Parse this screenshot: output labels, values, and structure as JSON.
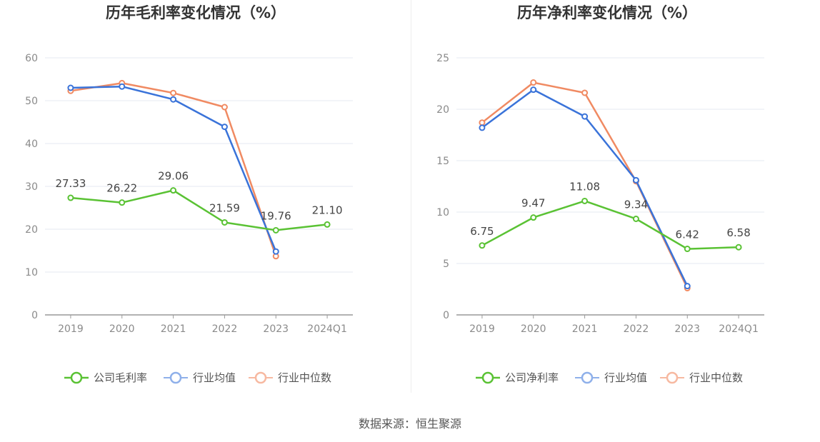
{
  "chart_data": [
    {
      "type": "line",
      "title": "历年毛利率变化情况（%）",
      "categories": [
        "2019",
        "2020",
        "2021",
        "2022",
        "2023",
        "2024Q1"
      ],
      "ylim": [
        0,
        60
      ],
      "yticks": [
        0,
        10,
        20,
        30,
        40,
        50,
        60
      ],
      "series": [
        {
          "name": "公司毛利率",
          "color": "#5ac234",
          "values": [
            27.33,
            26.22,
            29.06,
            21.59,
            19.76,
            21.1
          ],
          "labels": [
            "27.33",
            "26.22",
            "29.06",
            "21.59",
            "19.76",
            "21.10"
          ]
        },
        {
          "name": "行业均值",
          "color": "#3a73d9",
          "values": [
            53.0,
            53.3,
            50.3,
            43.9,
            14.8,
            null
          ]
        },
        {
          "name": "行业中位数",
          "color": "#f08a62",
          "values": [
            52.3,
            54.1,
            51.8,
            48.5,
            13.7,
            null
          ]
        }
      ]
    },
    {
      "type": "line",
      "title": "历年净利率变化情况（%）",
      "categories": [
        "2019",
        "2020",
        "2021",
        "2022",
        "2023",
        "2024Q1"
      ],
      "ylim": [
        0,
        25
      ],
      "yticks": [
        0,
        5,
        10,
        15,
        20,
        25
      ],
      "series": [
        {
          "name": "公司净利率",
          "color": "#5ac234",
          "values": [
            6.75,
            9.47,
            11.08,
            9.34,
            6.42,
            6.58
          ],
          "labels": [
            "6.75",
            "9.47",
            "11.08",
            "9.34",
            "6.42",
            "6.58"
          ]
        },
        {
          "name": "行业均值",
          "color": "#3a73d9",
          "values": [
            18.2,
            21.9,
            19.3,
            13.1,
            2.8,
            null
          ]
        },
        {
          "name": "行业中位数",
          "color": "#f08a62",
          "values": [
            18.7,
            22.6,
            21.6,
            13.0,
            2.6,
            null
          ]
        }
      ]
    }
  ],
  "legend_colors": {
    "company": "#5ac234",
    "avg_light": "#8fb0ea",
    "median_light": "#f7b9a1"
  },
  "source_text": "数据来源：恒生聚源"
}
